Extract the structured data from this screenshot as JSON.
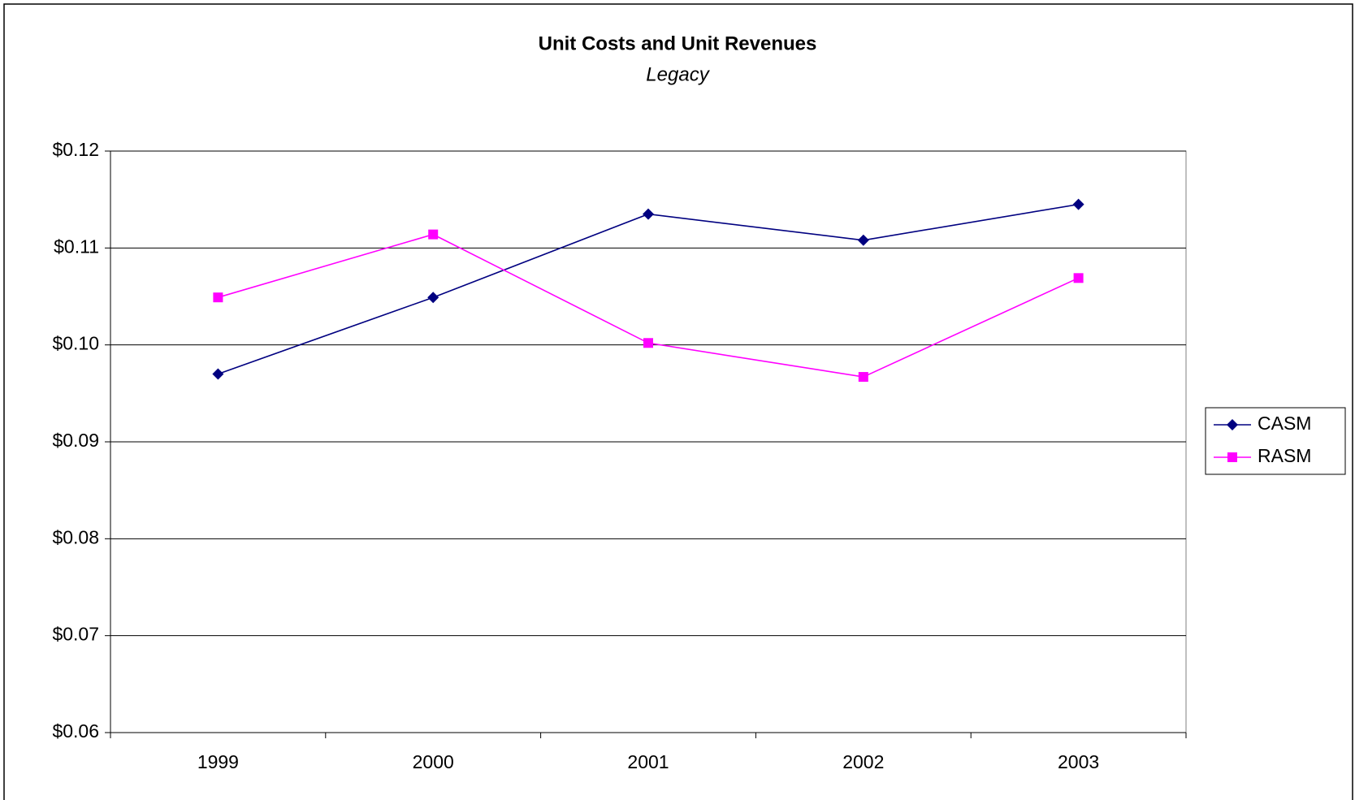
{
  "chart_data": {
    "type": "line",
    "title": "Unit Costs and Unit Revenues",
    "subtitle": "Legacy",
    "categories": [
      "1999",
      "2000",
      "2001",
      "2002",
      "2003"
    ],
    "series": [
      {
        "name": "CASM",
        "color": "#000080",
        "marker": "diamond",
        "values": [
          0.097,
          0.1049,
          0.1135,
          0.1108,
          0.1145
        ]
      },
      {
        "name": "RASM",
        "color": "#ff00ff",
        "marker": "square",
        "values": [
          0.1049,
          0.1114,
          0.1002,
          0.0967,
          0.1069
        ]
      }
    ],
    "ylim": [
      0.06,
      0.12
    ],
    "yticks": [
      {
        "value": 0.06,
        "label": "$0.06"
      },
      {
        "value": 0.07,
        "label": "$0.07"
      },
      {
        "value": 0.08,
        "label": "$0.08"
      },
      {
        "value": 0.09,
        "label": "$0.09"
      },
      {
        "value": 0.1,
        "label": "$0.10"
      },
      {
        "value": 0.11,
        "label": "$0.11"
      },
      {
        "value": 0.12,
        "label": "$0.12"
      }
    ],
    "grid": true,
    "legend": "right"
  }
}
